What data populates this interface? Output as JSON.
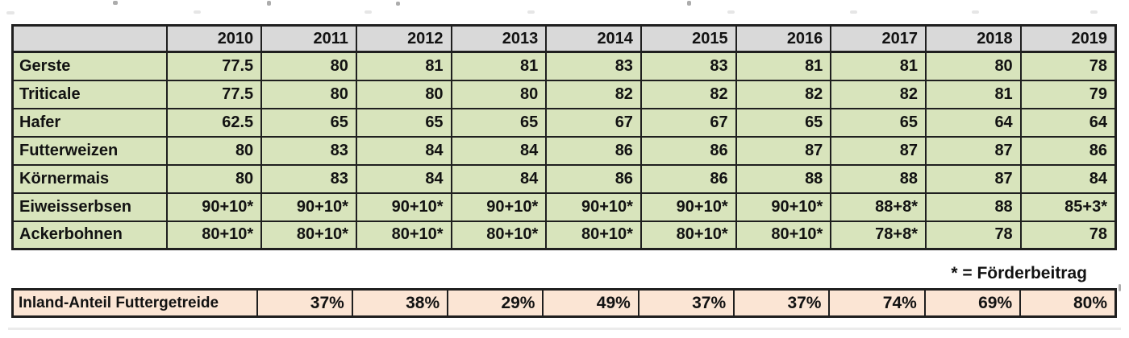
{
  "colors": {
    "header_bg": "#d9d9d9",
    "row_bg": "#d8e4bc",
    "summary_bg": "#fbe5d4",
    "border": "#1f1f1f",
    "text": "#121212"
  },
  "table": {
    "columns": [
      "2010",
      "2011",
      "2012",
      "2013",
      "2014",
      "2015",
      "2016",
      "2017",
      "2018",
      "2019"
    ],
    "rows": [
      {
        "label": "Gerste",
        "values": [
          "77.5",
          "80",
          "81",
          "81",
          "83",
          "83",
          "81",
          "81",
          "80",
          "78"
        ]
      },
      {
        "label": "Triticale",
        "values": [
          "77.5",
          "80",
          "80",
          "80",
          "82",
          "82",
          "82",
          "82",
          "81",
          "79"
        ]
      },
      {
        "label": "Hafer",
        "values": [
          "62.5",
          "65",
          "65",
          "65",
          "67",
          "67",
          "65",
          "65",
          "64",
          "64"
        ]
      },
      {
        "label": "Futterweizen",
        "values": [
          "80",
          "83",
          "84",
          "84",
          "86",
          "86",
          "87",
          "87",
          "87",
          "86"
        ]
      },
      {
        "label": "Körnermais",
        "values": [
          "80",
          "83",
          "84",
          "84",
          "86",
          "86",
          "88",
          "88",
          "87",
          "84"
        ]
      },
      {
        "label": "Eiweisserbsen",
        "values": [
          "90+10*",
          "90+10*",
          "90+10*",
          "90+10*",
          "90+10*",
          "90+10*",
          "90+10*",
          "88+8*",
          "88",
          "85+3*"
        ]
      },
      {
        "label": "Ackerbohnen",
        "values": [
          "80+10*",
          "80+10*",
          "80+10*",
          "80+10*",
          "80+10*",
          "80+10*",
          "80+10*",
          "78+8*",
          "78",
          "78"
        ]
      }
    ]
  },
  "footnote": "* = Förderbeitrag",
  "summary": {
    "label": "Inland-Anteil Futtergetreide",
    "values": [
      "37%",
      "38%",
      "29%",
      "49%",
      "37%",
      "37%",
      "74%",
      "69%",
      "80%"
    ]
  }
}
